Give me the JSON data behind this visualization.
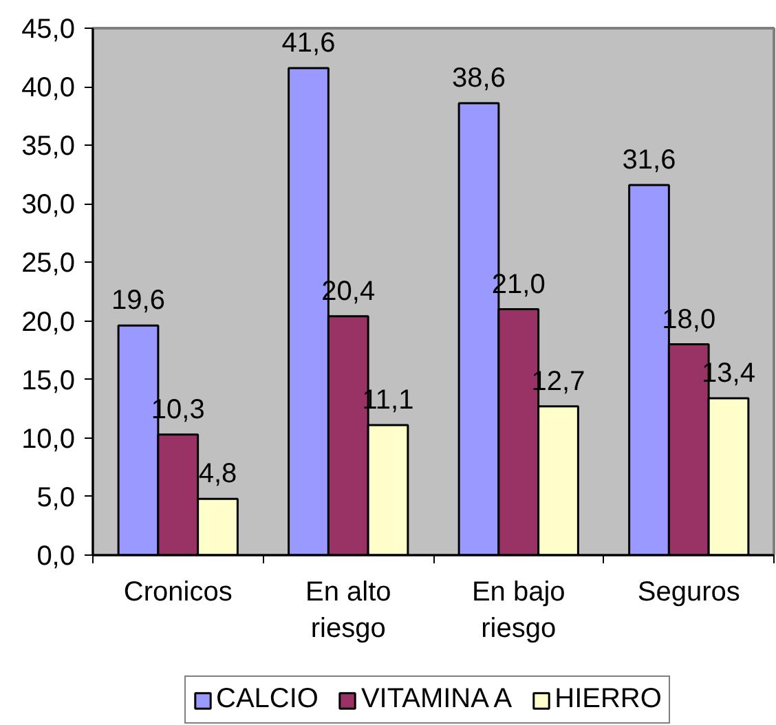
{
  "chart_data": {
    "type": "bar",
    "categories": [
      "Cronicos",
      "En alto riesgo",
      "En bajo riesgo",
      "Seguros"
    ],
    "series": [
      {
        "name": "CALCIO",
        "color": "#9999ff",
        "values": [
          19.6,
          41.6,
          38.6,
          31.6
        ],
        "value_labels": [
          "19,6",
          "41,6",
          "38,6",
          "31,6"
        ]
      },
      {
        "name": "VITAMINA A",
        "color": "#993366",
        "values": [
          10.3,
          20.4,
          21.0,
          18.0
        ],
        "value_labels": [
          "10,3",
          "20,4",
          "21,0",
          "18,0"
        ]
      },
      {
        "name": "HIERRO",
        "color": "#ffffcc",
        "values": [
          4.8,
          11.1,
          12.7,
          13.4
        ],
        "value_labels": [
          "4,8",
          "11,1",
          "12,7",
          "13,4"
        ]
      }
    ],
    "ylim": [
      0,
      45
    ],
    "yticks": [
      {
        "value": 0,
        "label": "0,0"
      },
      {
        "value": 5,
        "label": "5,0"
      },
      {
        "value": 10,
        "label": "10,0"
      },
      {
        "value": 15,
        "label": "15,0"
      },
      {
        "value": 20,
        "label": "20,0"
      },
      {
        "value": 25,
        "label": "25,0"
      },
      {
        "value": 30,
        "label": "30,0"
      },
      {
        "value": 35,
        "label": "35,0"
      },
      {
        "value": 40,
        "label": "40,0"
      },
      {
        "value": 45,
        "label": "45,0"
      }
    ],
    "grid": false,
    "legend": "bottom"
  }
}
